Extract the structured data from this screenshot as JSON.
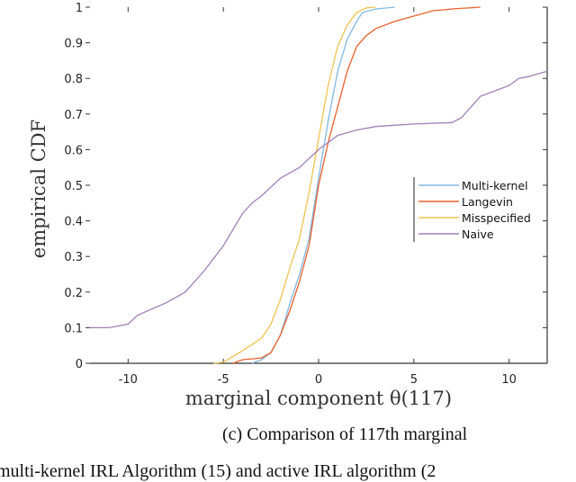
{
  "chart_data": {
    "type": "line",
    "title": "",
    "xlabel": "marginal component θ(117)",
    "ylabel": "empirical CDF",
    "xlim": [
      -12,
      12
    ],
    "ylim": [
      0,
      1
    ],
    "xticks": [
      -10,
      -5,
      0,
      5,
      10
    ],
    "yticks": [
      0,
      0.1,
      0.2,
      0.3,
      0.4,
      0.5,
      0.6,
      0.7,
      0.8,
      0.9,
      1
    ],
    "grid": false,
    "legend_placement": "center-right",
    "series": [
      {
        "name": "Multi-kernel",
        "color": "#80b7e2",
        "x": [
          -3.5,
          -3,
          -2.5,
          -2,
          -1.5,
          -1,
          -0.5,
          0,
          0.5,
          1,
          1.5,
          2,
          2.3,
          3,
          4
        ],
        "y": [
          0,
          0.01,
          0.03,
          0.08,
          0.17,
          0.25,
          0.35,
          0.52,
          0.68,
          0.82,
          0.91,
          0.96,
          0.985,
          0.995,
          1
        ]
      },
      {
        "name": "Langevin",
        "color": "#e8602c",
        "x": [
          -4.5,
          -4,
          -3,
          -2.5,
          -2,
          -1.5,
          -1,
          -0.5,
          0,
          0.5,
          1,
          1.5,
          2,
          2.5,
          3,
          4,
          5,
          6,
          7,
          8.5
        ],
        "y": [
          0,
          0.01,
          0.015,
          0.03,
          0.08,
          0.15,
          0.23,
          0.33,
          0.5,
          0.62,
          0.72,
          0.82,
          0.89,
          0.92,
          0.94,
          0.96,
          0.975,
          0.99,
          0.995,
          1
        ]
      },
      {
        "name": "Misspecified",
        "color": "#f2c251",
        "x": [
          -5.5,
          -5,
          -4,
          -3,
          -2.5,
          -2,
          -1.5,
          -1,
          -0.5,
          0,
          0.5,
          1,
          1.5,
          2,
          2.5,
          3
        ],
        "y": [
          0,
          0.003,
          0.035,
          0.07,
          0.11,
          0.18,
          0.27,
          0.35,
          0.48,
          0.63,
          0.78,
          0.89,
          0.95,
          0.985,
          0.998,
          1
        ]
      },
      {
        "name": "Naive",
        "color": "#a07fb8",
        "x": [
          -12,
          -11,
          -10,
          -9.5,
          -8,
          -7,
          -6,
          -5,
          -4,
          -3.5,
          -3,
          -2,
          -1,
          0,
          0.5,
          1,
          2,
          3,
          5,
          7,
          7.5,
          8,
          8.5,
          9.5,
          10,
          10.5,
          11,
          12
        ],
        "y": [
          0.1,
          0.1,
          0.11,
          0.135,
          0.17,
          0.2,
          0.26,
          0.33,
          0.42,
          0.45,
          0.47,
          0.52,
          0.55,
          0.6,
          0.62,
          0.64,
          0.655,
          0.665,
          0.672,
          0.676,
          0.69,
          0.72,
          0.75,
          0.77,
          0.78,
          0.8,
          0.805,
          0.82
        ]
      }
    ]
  },
  "caption": "(c) Comparison of 117th marginal",
  "body_text": "multi-kernel IRL Algorithm (15) and active IRL algorithm (2"
}
